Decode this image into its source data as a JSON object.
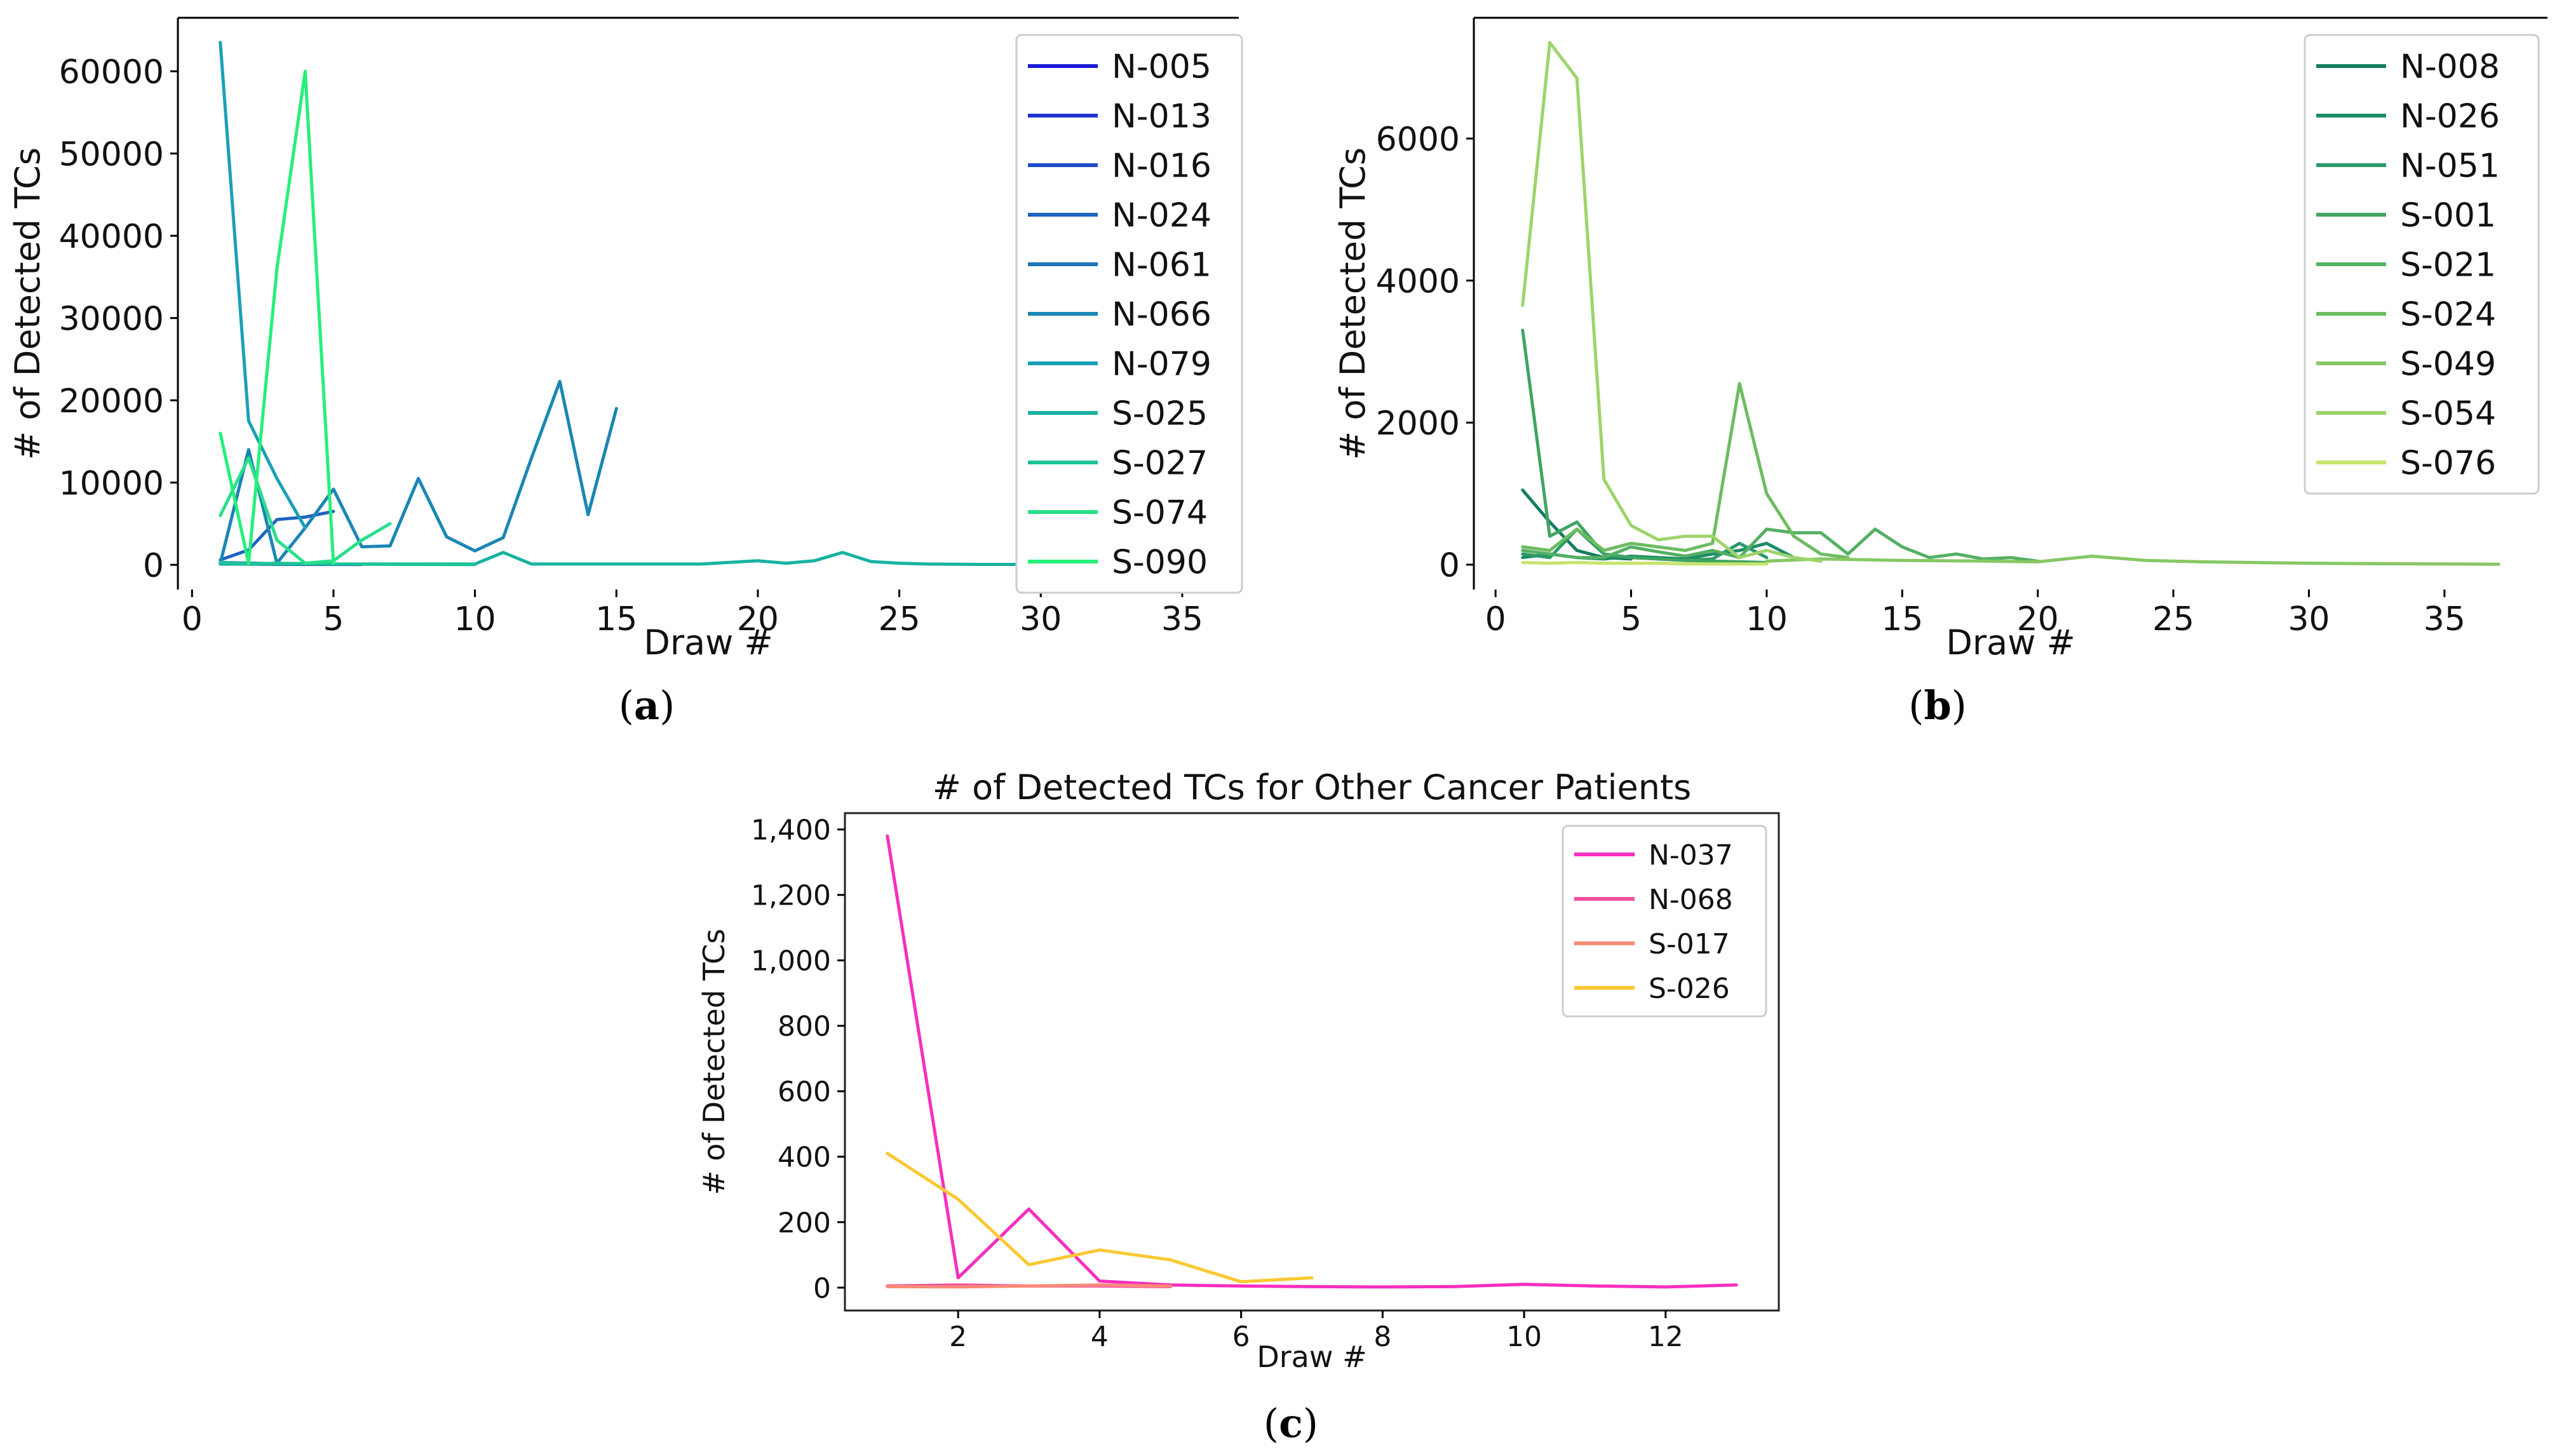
{
  "captions": {
    "a": "a",
    "b": "b",
    "c": "c"
  },
  "chart_data": [
    {
      "id": "a",
      "type": "line",
      "title": "",
      "xlabel": "Draw #",
      "ylabel": "# of Detected TCs",
      "xlim": [
        -0.5,
        37
      ],
      "ylim": [
        -3000,
        66500
      ],
      "xticks": [
        0,
        5,
        10,
        15,
        20,
        25,
        30,
        35
      ],
      "yticks": [
        0,
        10000,
        20000,
        30000,
        40000,
        50000,
        60000
      ],
      "ytick_labels": [
        "0",
        "10000",
        "20000",
        "30000",
        "40000",
        "50000",
        "60000"
      ],
      "legend_position": "top-right",
      "series": [
        {
          "name": "N-005",
          "color": "#1a1ad6",
          "x": [
            1,
            2,
            3,
            4,
            5
          ],
          "y": [
            200,
            100,
            100,
            50,
            50
          ]
        },
        {
          "name": "N-013",
          "color": "#1c33d0",
          "x": [
            1,
            2,
            3,
            4,
            5,
            6
          ],
          "y": [
            100,
            100,
            80,
            50,
            50,
            40
          ]
        },
        {
          "name": "N-016",
          "color": "#1d4ec6",
          "x": [
            1,
            2,
            3,
            4
          ],
          "y": [
            150,
            80,
            60,
            40
          ]
        },
        {
          "name": "N-024",
          "color": "#1e64c0",
          "x": [
            1,
            2,
            3,
            4,
            5
          ],
          "y": [
            600,
            1800,
            5500,
            5800,
            6500
          ]
        },
        {
          "name": "N-061",
          "color": "#1c74b9",
          "x": [
            1,
            2,
            3,
            4,
            5
          ],
          "y": [
            300,
            200,
            150,
            100,
            80
          ]
        },
        {
          "name": "N-066",
          "color": "#1a86b4",
          "x": [
            1,
            2,
            3,
            4,
            5,
            6,
            7,
            8,
            9,
            10,
            11,
            12,
            13,
            14,
            15
          ],
          "y": [
            200,
            14000,
            200,
            4500,
            9200,
            2200,
            2300,
            10500,
            3400,
            1700,
            3300,
            13000,
            22300,
            6100,
            19000
          ]
        },
        {
          "name": "N-079",
          "color": "#1aa0b8",
          "x": [
            1,
            2,
            3,
            4
          ],
          "y": [
            63500,
            17500,
            10500,
            4500
          ]
        },
        {
          "name": "S-025",
          "color": "#18b2a2",
          "x": [
            1,
            3,
            5,
            7,
            10,
            11,
            12,
            15,
            18,
            20,
            21,
            22,
            23,
            24,
            25,
            26,
            28,
            30,
            33
          ],
          "y": [
            100,
            100,
            100,
            100,
            100,
            1500,
            100,
            100,
            100,
            500,
            200,
            500,
            1500,
            400,
            200,
            100,
            50,
            50,
            50
          ]
        },
        {
          "name": "S-027",
          "color": "#1cc496",
          "x": [
            1,
            2,
            3,
            4,
            5,
            6,
            7,
            8,
            9,
            10
          ],
          "y": [
            300,
            100,
            200,
            150,
            100,
            80,
            60,
            50,
            40,
            30
          ]
        },
        {
          "name": "S-074",
          "color": "#28e08a",
          "x": [
            1,
            2,
            3,
            4,
            5,
            6,
            7
          ],
          "y": [
            6000,
            13000,
            3000,
            200,
            500,
            3000,
            5000
          ]
        },
        {
          "name": "S-090",
          "color": "#24f07a",
          "x": [
            1,
            2,
            3,
            4,
            5
          ],
          "y": [
            16000,
            200,
            36000,
            60000,
            200
          ]
        }
      ]
    },
    {
      "id": "b",
      "type": "line",
      "title": "",
      "xlabel": "Draw #",
      "ylabel": "# of Detected TCs",
      "xlim": [
        -0.8,
        38.8
      ],
      "ylim": [
        -350,
        7700
      ],
      "xticks": [
        0,
        5,
        10,
        15,
        20,
        25,
        30,
        35
      ],
      "yticks": [
        0,
        2000,
        4000,
        6000
      ],
      "ytick_labels": [
        "0",
        "2000",
        "4000",
        "6000"
      ],
      "legend_position": "top-right",
      "series": [
        {
          "name": "N-008",
          "color": "#137e5e",
          "x": [
            1,
            2,
            3,
            4,
            5
          ],
          "y": [
            1050,
            600,
            200,
            100,
            80
          ]
        },
        {
          "name": "N-026",
          "color": "#1d8c66",
          "x": [
            1,
            2,
            3,
            4,
            5,
            6,
            7,
            8,
            9,
            10,
            11
          ],
          "y": [
            100,
            150,
            100,
            80,
            120,
            100,
            80,
            150,
            200,
            300,
            100
          ]
        },
        {
          "name": "N-051",
          "color": "#2a9a6a",
          "x": [
            1,
            2,
            3,
            4,
            5,
            6,
            7,
            8,
            9,
            10
          ],
          "y": [
            150,
            100,
            500,
            150,
            100,
            80,
            60,
            80,
            300,
            100
          ]
        },
        {
          "name": "S-001",
          "color": "#3fa562",
          "x": [
            1,
            2,
            3,
            4,
            5,
            6,
            7,
            8,
            9,
            10
          ],
          "y": [
            3300,
            400,
            600,
            150,
            100,
            80,
            60,
            50,
            40,
            30
          ]
        },
        {
          "name": "S-021",
          "color": "#54b062",
          "x": [
            1,
            2,
            3,
            4,
            5,
            6,
            7,
            8,
            9,
            10,
            11,
            12,
            13,
            14,
            15,
            16,
            17,
            18,
            19,
            20
          ],
          "y": [
            200,
            150,
            100,
            100,
            250,
            180,
            120,
            200,
            100,
            500,
            450,
            450,
            150,
            500,
            250,
            100,
            150,
            80,
            100,
            50
          ]
        },
        {
          "name": "S-024",
          "color": "#6cbc60",
          "x": [
            1,
            2,
            3,
            4,
            5,
            6,
            7,
            8,
            9,
            10,
            11,
            12,
            13
          ],
          "y": [
            250,
            200,
            500,
            200,
            300,
            250,
            200,
            300,
            2550,
            1000,
            400,
            150,
            100
          ]
        },
        {
          "name": "S-049",
          "color": "#86c864",
          "x": [
            10,
            12,
            15,
            18,
            20,
            22,
            24,
            26,
            28,
            30,
            32,
            35,
            37
          ],
          "y": [
            50,
            80,
            60,
            50,
            40,
            120,
            60,
            40,
            30,
            20,
            15,
            10,
            5
          ]
        },
        {
          "name": "S-054",
          "color": "#9dd46a",
          "x": [
            1,
            2,
            3,
            4,
            5,
            6,
            7,
            8,
            9,
            10,
            11,
            12
          ],
          "y": [
            3650,
            7350,
            6850,
            1200,
            550,
            350,
            400,
            400,
            100,
            200,
            100,
            50
          ]
        },
        {
          "name": "S-076",
          "color": "#c7e46e",
          "x": [
            1,
            2,
            3,
            4,
            5,
            6,
            7,
            8,
            9,
            10
          ],
          "y": [
            30,
            20,
            30,
            20,
            20,
            20,
            10,
            10,
            10,
            10
          ]
        }
      ]
    },
    {
      "id": "c",
      "type": "line",
      "title": "# of Detected TCs for Other Cancer Patients",
      "xlabel": "Draw #",
      "ylabel": "# of Detected TCs",
      "xlim": [
        0.4,
        13.6
      ],
      "ylim": [
        -70,
        1450
      ],
      "xticks": [
        2,
        4,
        6,
        8,
        10,
        12
      ],
      "yticks": [
        0,
        200,
        400,
        600,
        800,
        1000,
        1200,
        1400
      ],
      "ytick_labels": [
        "0",
        "200",
        "400",
        "600",
        "800",
        "1,000",
        "1,200",
        "1,400"
      ],
      "legend_position": "top-right",
      "series": [
        {
          "name": "N-037",
          "color": "#f72ec0",
          "x": [
            1,
            2,
            3,
            4,
            5,
            6,
            7,
            8,
            9,
            10,
            11,
            12,
            13
          ],
          "y": [
            1380,
            30,
            240,
            20,
            8,
            5,
            3,
            2,
            3,
            10,
            5,
            2,
            8
          ]
        },
        {
          "name": "N-068",
          "color": "#f5509e",
          "x": [
            1,
            2,
            3,
            4,
            5
          ],
          "y": [
            5,
            8,
            5,
            5,
            3
          ]
        },
        {
          "name": "S-017",
          "color": "#f98a78",
          "x": [
            1,
            2,
            3,
            4,
            5
          ],
          "y": [
            3,
            2,
            5,
            8,
            5
          ]
        },
        {
          "name": "S-026",
          "color": "#fbc832",
          "x": [
            1,
            2,
            3,
            4,
            5,
            6,
            7
          ],
          "y": [
            410,
            270,
            70,
            115,
            85,
            18,
            30
          ]
        }
      ]
    }
  ]
}
